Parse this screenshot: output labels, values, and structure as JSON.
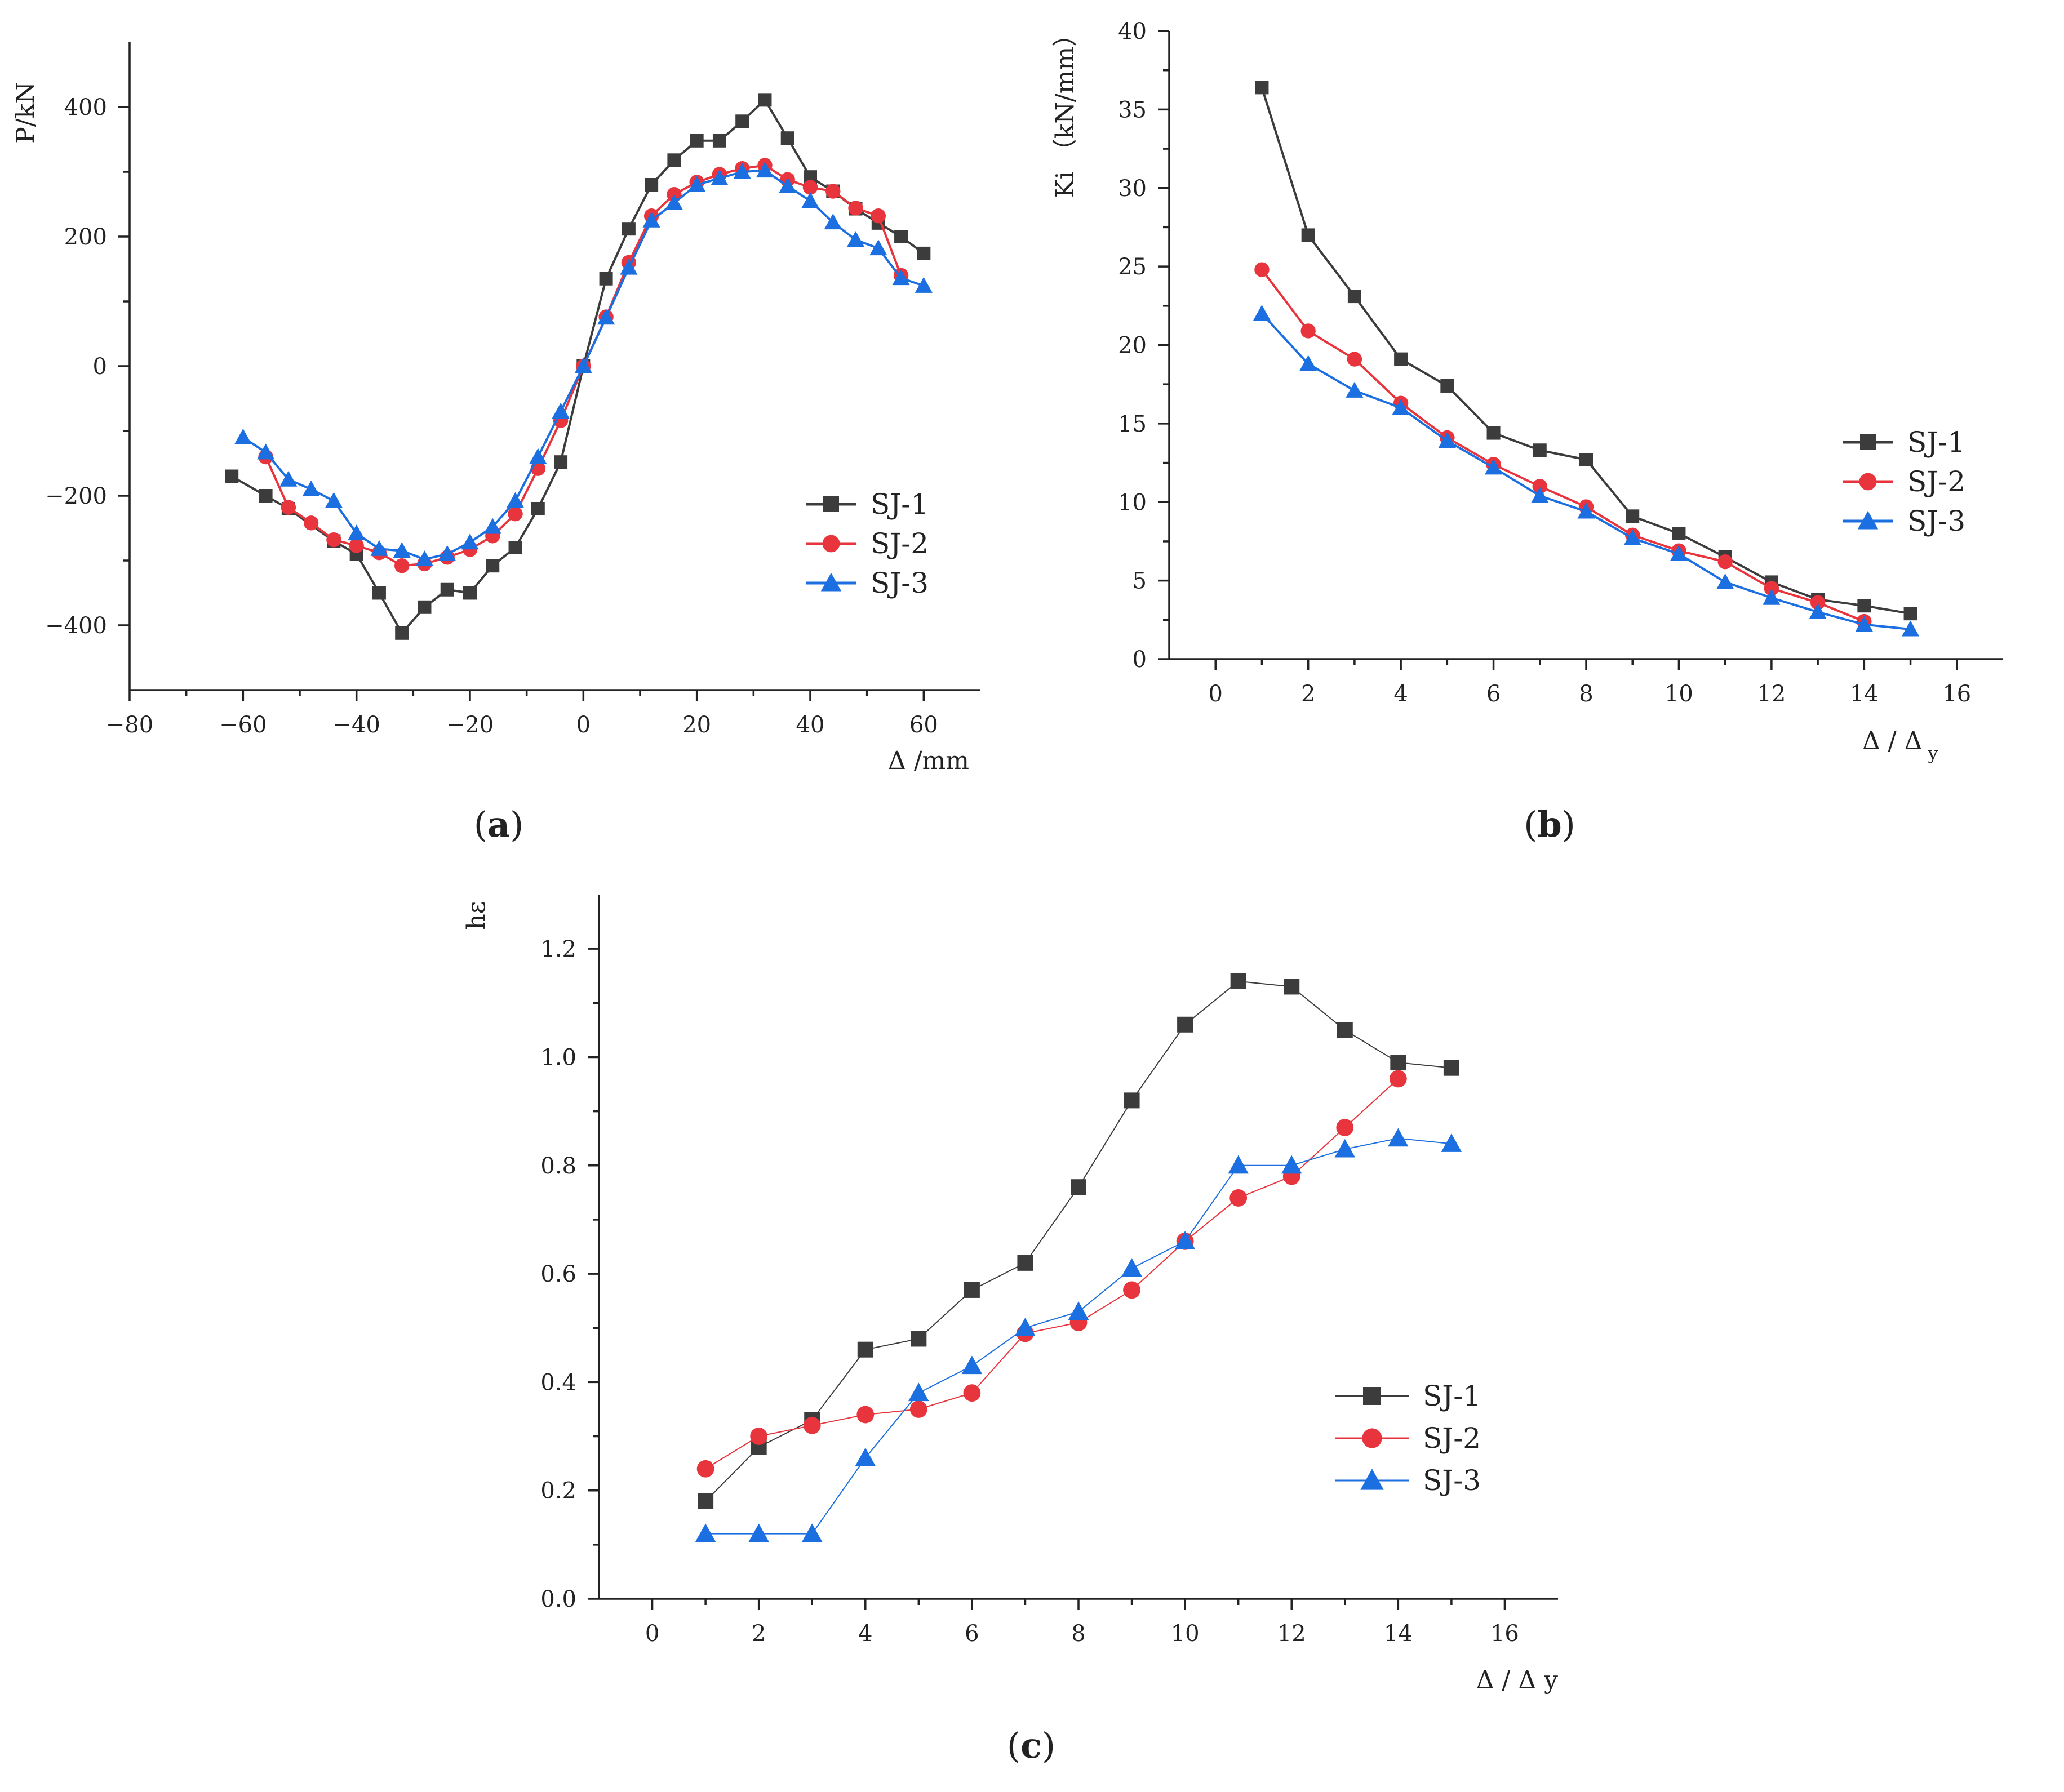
{
  "colors": {
    "SJ-1": "#3c3c3c",
    "SJ-2": "#e8343c",
    "SJ-3": "#1c6fe0"
  },
  "chart_data": [
    {
      "id": "a",
      "caption_letter": "a",
      "type": "line",
      "xlabel": "Δ /mm",
      "ylabel": "P/kN",
      "xlim": [
        -80,
        70
      ],
      "ylim": [
        -500,
        500
      ],
      "xticks": [
        -80,
        -60,
        -40,
        -20,
        0,
        20,
        40,
        60
      ],
      "xtick_labels": [
        "−80",
        "−60",
        "−40",
        "−20",
        "0",
        "20",
        "40",
        "60"
      ],
      "yticks": [
        -400,
        -200,
        0,
        200,
        400
      ],
      "ytick_labels": [
        "−400",
        "−200",
        "0",
        "200",
        "400"
      ],
      "legend": [
        "SJ-1",
        "SJ-2",
        "SJ-3"
      ],
      "legend_position": "bottom-right",
      "series": [
        {
          "name": "SJ-1",
          "marker": "square",
          "line_width": 4,
          "x": [
            -62,
            -56,
            -52,
            -44,
            -40,
            -36,
            -32,
            -28,
            -24,
            -20,
            -16,
            -12,
            -8,
            -4,
            0,
            4,
            8,
            12,
            16,
            20,
            24,
            28,
            32,
            36,
            40,
            44,
            48,
            52,
            56,
            60
          ],
          "y": [
            -170,
            -200,
            -220,
            -270,
            -290,
            -350,
            -412,
            -372,
            -345,
            -350,
            -308,
            -280,
            -220,
            -148,
            0,
            135,
            212,
            280,
            318,
            348,
            348,
            378,
            411,
            352,
            292,
            270,
            243,
            221,
            200,
            174
          ]
        },
        {
          "name": "SJ-2",
          "marker": "circle",
          "line_width": 4,
          "x": [
            -56,
            -52,
            -48,
            -44,
            -40,
            -36,
            -32,
            -28,
            -24,
            -20,
            -16,
            -12,
            -8,
            -4,
            0,
            4,
            8,
            12,
            16,
            20,
            24,
            28,
            32,
            36,
            40,
            44,
            48,
            52,
            56
          ],
          "y": [
            -140,
            -218,
            -242,
            -268,
            -277,
            -288,
            -308,
            -305,
            -295,
            -283,
            -262,
            -228,
            -158,
            -84,
            0,
            76,
            160,
            232,
            265,
            284,
            296,
            305,
            310,
            288,
            276,
            270,
            244,
            232,
            140
          ]
        },
        {
          "name": "SJ-3",
          "marker": "triangle",
          "line_width": 4,
          "x": [
            -60,
            -56,
            -52,
            -48,
            -44,
            -40,
            -36,
            -32,
            -28,
            -24,
            -20,
            -16,
            -12,
            -8,
            -4,
            0,
            4,
            8,
            12,
            16,
            20,
            24,
            28,
            32,
            36,
            40,
            44,
            48,
            52,
            56,
            60
          ],
          "y": [
            -110,
            -133,
            -175,
            -190,
            -208,
            -258,
            -282,
            -285,
            -298,
            -290,
            -272,
            -248,
            -208,
            -140,
            -70,
            0,
            75,
            152,
            225,
            252,
            280,
            290,
            300,
            302,
            278,
            255,
            222,
            195,
            182,
            136,
            124
          ]
        }
      ]
    },
    {
      "id": "b",
      "caption_letter": "b",
      "type": "line",
      "xlabel": "Δ / Δ",
      "xlabel_sub": "y",
      "ylabel": "Ki （kN/mm）",
      "xlim": [
        -1,
        17
      ],
      "ylim": [
        0,
        40
      ],
      "xticks": [
        0,
        2,
        4,
        6,
        8,
        10,
        12,
        14,
        16
      ],
      "xtick_labels": [
        "0",
        "2",
        "4",
        "6",
        "8",
        "10",
        "12",
        "14",
        "16"
      ],
      "yticks": [
        0,
        5,
        10,
        15,
        20,
        25,
        30,
        35,
        40
      ],
      "ytick_labels": [
        "0",
        "5",
        "10",
        "15",
        "20",
        "25",
        "30",
        "35",
        "40"
      ],
      "legend": [
        "SJ-1",
        "SJ-2",
        "SJ-3"
      ],
      "legend_position": "right",
      "series": [
        {
          "name": "SJ-1",
          "marker": "square",
          "line_width": 4,
          "x": [
            1,
            2,
            3,
            4,
            5,
            6,
            7,
            8,
            9,
            10,
            11,
            12,
            13,
            14,
            15
          ],
          "y": [
            36.4,
            27.0,
            23.1,
            19.1,
            17.4,
            14.4,
            13.3,
            12.7,
            9.1,
            8.0,
            6.5,
            4.9,
            3.8,
            3.4,
            2.9
          ]
        },
        {
          "name": "SJ-2",
          "marker": "circle",
          "line_width": 4,
          "x": [
            1,
            2,
            3,
            4,
            5,
            6,
            7,
            8,
            9,
            10,
            11,
            12,
            13,
            14
          ],
          "y": [
            24.8,
            20.9,
            19.1,
            16.3,
            14.1,
            12.4,
            11.0,
            9.7,
            7.9,
            6.9,
            6.2,
            4.5,
            3.6,
            2.4
          ]
        },
        {
          "name": "SJ-3",
          "marker": "triangle",
          "line_width": 4,
          "x": [
            1,
            2,
            3,
            4,
            5,
            6,
            7,
            8,
            9,
            10,
            11,
            12,
            13,
            14,
            15
          ],
          "y": [
            22.0,
            18.8,
            17.1,
            16.0,
            13.9,
            12.2,
            10.4,
            9.4,
            7.7,
            6.7,
            4.9,
            3.9,
            3.0,
            2.2,
            1.9
          ]
        }
      ]
    },
    {
      "id": "c",
      "caption_letter": "c",
      "type": "line",
      "xlabel": "Δ / Δ y",
      "ylabel": "hε",
      "xlim": [
        -1,
        17
      ],
      "ylim": [
        0,
        1.3
      ],
      "xticks": [
        0,
        2,
        4,
        6,
        8,
        10,
        12,
        14,
        16
      ],
      "xtick_labels": [
        "0",
        "2",
        "4",
        "6",
        "8",
        "10",
        "12",
        "14",
        "16"
      ],
      "yticks": [
        0,
        0.2,
        0.4,
        0.6,
        0.8,
        1.0,
        1.2
      ],
      "ytick_labels": [
        "0.0",
        "0.2",
        "0.4",
        "0.6",
        "0.8",
        "1.0",
        "1.2"
      ],
      "legend": [
        "SJ-1",
        "SJ-2",
        "SJ-3"
      ],
      "legend_position": "bottom-right",
      "series": [
        {
          "name": "SJ-1",
          "marker": "square",
          "line_width": 2,
          "x": [
            1,
            2,
            3,
            4,
            5,
            6,
            7,
            8,
            9,
            10,
            11,
            12,
            13,
            14,
            15
          ],
          "y": [
            0.18,
            0.28,
            0.33,
            0.46,
            0.48,
            0.57,
            0.62,
            0.76,
            0.92,
            1.06,
            1.14,
            1.13,
            1.05,
            0.99,
            0.98
          ]
        },
        {
          "name": "SJ-2",
          "marker": "circle",
          "line_width": 2,
          "x": [
            1,
            2,
            3,
            4,
            5,
            6,
            7,
            8,
            9,
            10,
            11,
            12,
            13,
            14
          ],
          "y": [
            0.24,
            0.3,
            0.32,
            0.34,
            0.35,
            0.38,
            0.49,
            0.51,
            0.57,
            0.66,
            0.74,
            0.78,
            0.87,
            0.96
          ]
        },
        {
          "name": "SJ-3",
          "marker": "triangle",
          "line_width": 2,
          "x": [
            1,
            2,
            3,
            4,
            5,
            6,
            7,
            8,
            9,
            10,
            11,
            12,
            13,
            14,
            15
          ],
          "y": [
            0.12,
            0.12,
            0.12,
            0.26,
            0.38,
            0.43,
            0.5,
            0.53,
            0.61,
            0.66,
            0.8,
            0.8,
            0.83,
            0.85,
            0.84
          ]
        }
      ]
    }
  ]
}
